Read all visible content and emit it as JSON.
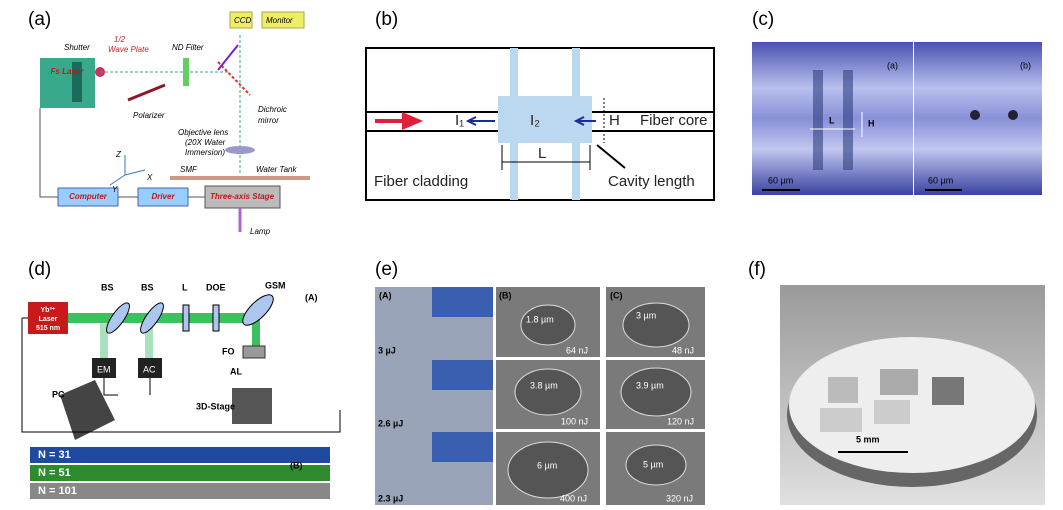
{
  "panels": [
    {
      "label": "(a)",
      "texts": [
        "Fs Laser",
        "Shutter",
        "1/2",
        "Wave Plate",
        "ND Filter",
        "Polarizer",
        "CCD",
        "Monitor",
        "Dichroic",
        "mirror",
        "Objective lens",
        "(20X Water",
        "Immersion)",
        "Z",
        "Y",
        "X",
        "SMF",
        "Water Tank",
        "Computer",
        "Driver",
        "Three-axis Stage",
        "Lamp"
      ]
    },
    {
      "label": "(b)",
      "texts": [
        "I₁",
        "I₂",
        "H",
        "Fiber core",
        "L",
        "Fiber cladding",
        "Cavity length"
      ]
    },
    {
      "label": "(c)",
      "texts": [
        "(a)",
        "(b)",
        "L",
        "H",
        "60 µm",
        "60 µm"
      ]
    },
    {
      "label": "(d)",
      "texts": [
        "BS",
        "BS",
        "L",
        "DOE",
        "GSM",
        "(A)",
        "Yb³⁺",
        "Laser",
        "515 nm",
        "FO",
        "AL",
        "EM",
        "AC",
        "PC",
        "3D-Stage",
        "N = 31",
        "N = 51",
        "N = 101",
        "(B)"
      ]
    },
    {
      "label": "(e)",
      "texts": [
        "(A)",
        "(B)",
        "(C)",
        "3 µJ",
        "2.6 µJ",
        "2.3 µJ",
        "1.8 µm",
        "64 nJ",
        "3 µm",
        "48 nJ",
        "3.8 µm",
        "100 nJ",
        "3.9 µm",
        "120 nJ",
        "6 µm",
        "400 nJ",
        "5 µm",
        "320 nJ"
      ]
    },
    {
      "label": "(f)",
      "texts": [
        "5 mm"
      ]
    }
  ]
}
